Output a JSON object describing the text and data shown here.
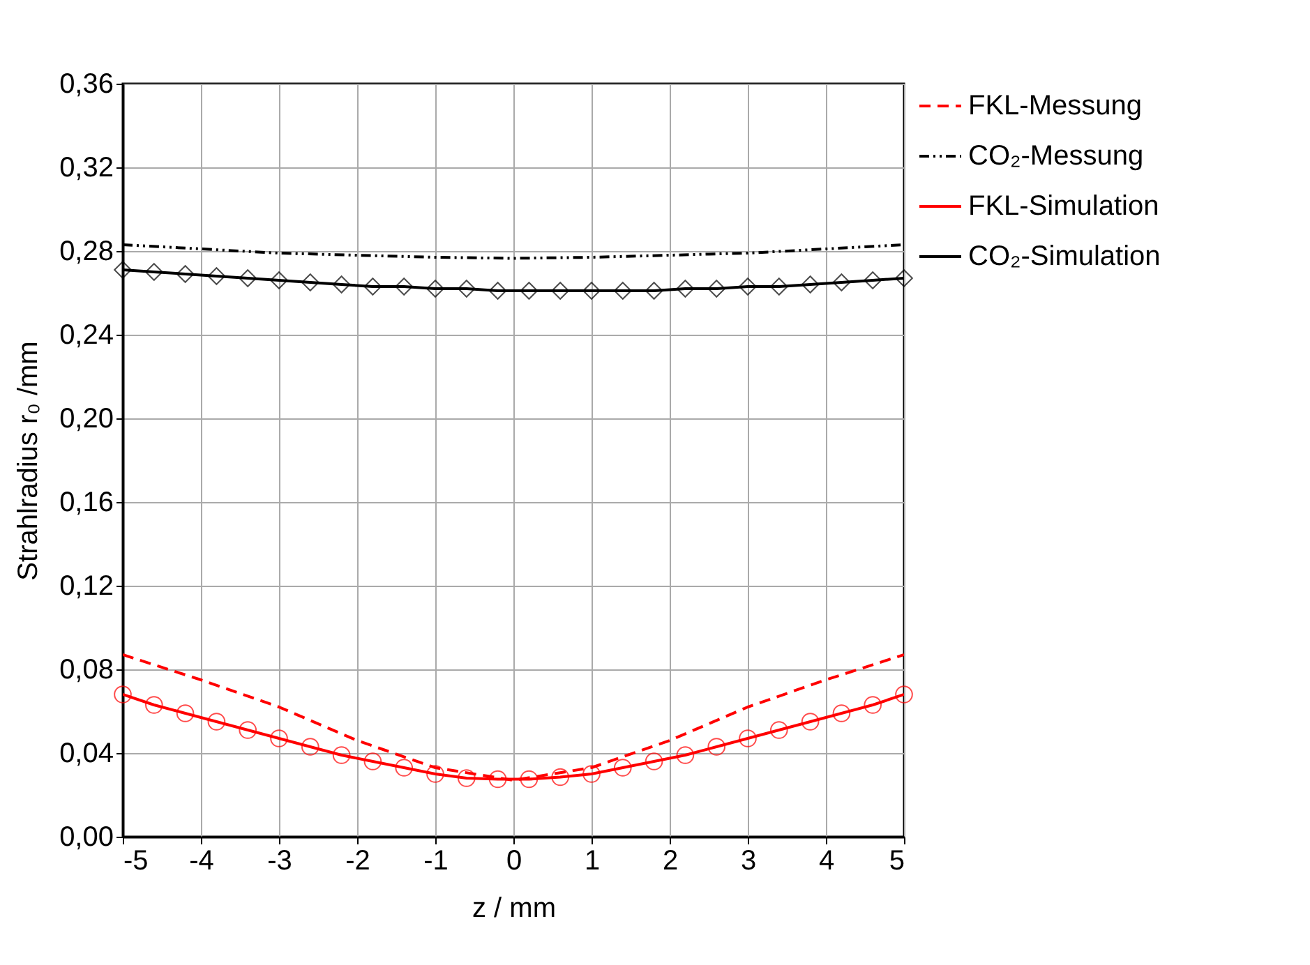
{
  "chart_data": {
    "type": "line",
    "xlabel": "z / mm",
    "ylabel": "Strahlradius r₀ /mm",
    "legend": "top right",
    "grid": true,
    "xlim": [
      -5,
      5
    ],
    "xticks": [
      -5,
      -4,
      -3,
      -2,
      -1,
      0,
      1,
      2,
      3,
      4,
      5
    ],
    "ylim": [
      0,
      0.36
    ],
    "yticks": [
      {
        "value": 0,
        "label": "0,00"
      },
      {
        "value": 0.04,
        "label": "0,04"
      },
      {
        "value": 0.08,
        "label": "0,08"
      },
      {
        "value": 0.12,
        "label": "0,12"
      },
      {
        "value": 0.16,
        "label": "0,16"
      },
      {
        "value": 0.2,
        "label": "0,20"
      },
      {
        "value": 0.24,
        "label": "0,24"
      },
      {
        "value": 0.28,
        "label": "0,28"
      },
      {
        "value": 0.32,
        "label": "0,32"
      },
      {
        "value": 0.36,
        "label": "0,36"
      }
    ],
    "series": [
      {
        "name": "FKL-Messung",
        "color": "#ff0000",
        "line_style": "dashed",
        "marker": "none",
        "x": [
          -5,
          -4,
          -3,
          -2,
          -1,
          0,
          1,
          2,
          3,
          4,
          5
        ],
        "values": [
          0.087,
          0.075,
          0.062,
          0.046,
          0.033,
          0.027,
          0.033,
          0.046,
          0.062,
          0.075,
          0.087
        ]
      },
      {
        "name": "CO₂-Messung",
        "color": "#000000",
        "line_style": "dotted",
        "marker": "none",
        "x": [
          -5,
          -4,
          -3,
          -2,
          -1,
          0,
          1,
          2,
          3,
          4,
          5
        ],
        "values": [
          0.283,
          0.281,
          0.279,
          0.278,
          0.277,
          0.2765,
          0.277,
          0.278,
          0.279,
          0.281,
          0.283
        ]
      },
      {
        "name": "FKL-Simulation",
        "color": "#ff0000",
        "line_style": "solid",
        "marker": "circle",
        "x": [
          -5,
          -4.6,
          -4.2,
          -3.8,
          -3.4,
          -3,
          -2.6,
          -2.2,
          -1.8,
          -1.4,
          -1,
          -0.6,
          -0.2,
          0.2,
          0.6,
          1,
          1.4,
          1.8,
          2.2,
          2.6,
          3,
          3.4,
          3.8,
          4.2,
          4.6,
          5
        ],
        "values": [
          0.068,
          0.063,
          0.059,
          0.055,
          0.051,
          0.047,
          0.043,
          0.039,
          0.036,
          0.033,
          0.03,
          0.028,
          0.0275,
          0.0275,
          0.0285,
          0.03,
          0.033,
          0.036,
          0.039,
          0.043,
          0.047,
          0.051,
          0.055,
          0.059,
          0.063,
          0.068
        ]
      },
      {
        "name": "CO₂-Simulation",
        "color": "#000000",
        "line_style": "solid",
        "marker": "diamond",
        "x": [
          -5,
          -4.6,
          -4.2,
          -3.8,
          -3.4,
          -3,
          -2.6,
          -2.2,
          -1.8,
          -1.4,
          -1,
          -0.6,
          -0.2,
          0.2,
          0.6,
          1,
          1.4,
          1.8,
          2.2,
          2.6,
          3,
          3.4,
          3.8,
          4.2,
          4.6,
          5
        ],
        "values": [
          0.271,
          0.27,
          0.269,
          0.268,
          0.267,
          0.266,
          0.265,
          0.264,
          0.263,
          0.263,
          0.262,
          0.262,
          0.261,
          0.261,
          0.261,
          0.261,
          0.261,
          0.261,
          0.262,
          0.262,
          0.263,
          0.263,
          0.264,
          0.265,
          0.266,
          0.267
        ]
      }
    ]
  }
}
